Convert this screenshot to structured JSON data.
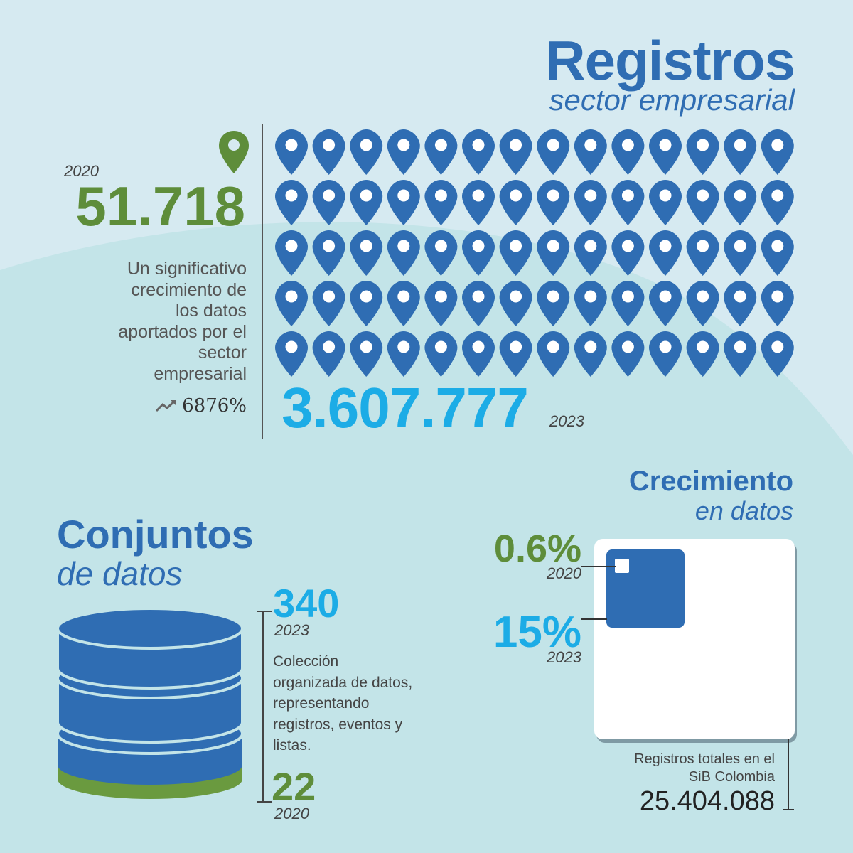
{
  "colors": {
    "brand_blue": "#2f6db3",
    "green": "#5e8d3a",
    "cyan": "#1cace6",
    "bg_top": "#d6eaf1",
    "bg_bottom": "#c3e4e8"
  },
  "registros": {
    "title": "Registros",
    "subtitle": "sector empresarial",
    "year_2020": "2020",
    "value_2020": "51.718",
    "description": [
      "Un significativo",
      "crecimiento de",
      "los datos",
      "aportados por el",
      "sector",
      "empresarial"
    ],
    "growth_icon": "trend-up-icon",
    "growth_value": "6876%",
    "value_2023": "3.607.777",
    "year_2023": "2023",
    "pin_rows": 5,
    "pin_cols": 14
  },
  "conjuntos": {
    "title": "Conjuntos",
    "subtitle": "de datos",
    "value_2023": "340",
    "year_2023": "2023",
    "description": [
      "Colección",
      "organizada de datos,",
      "representando",
      "registros, eventos y",
      "listas."
    ],
    "value_2020": "22",
    "year_2020": "2020"
  },
  "crecimiento": {
    "title": "Crecimiento",
    "subtitle": "en datos",
    "pct_2020": "0.6%",
    "year_2020": "2020",
    "pct_2023": "15%",
    "year_2023": "2023",
    "total_label": [
      "Registros totales en el",
      "SiB Colombia"
    ],
    "total_value": "25.404.088"
  }
}
